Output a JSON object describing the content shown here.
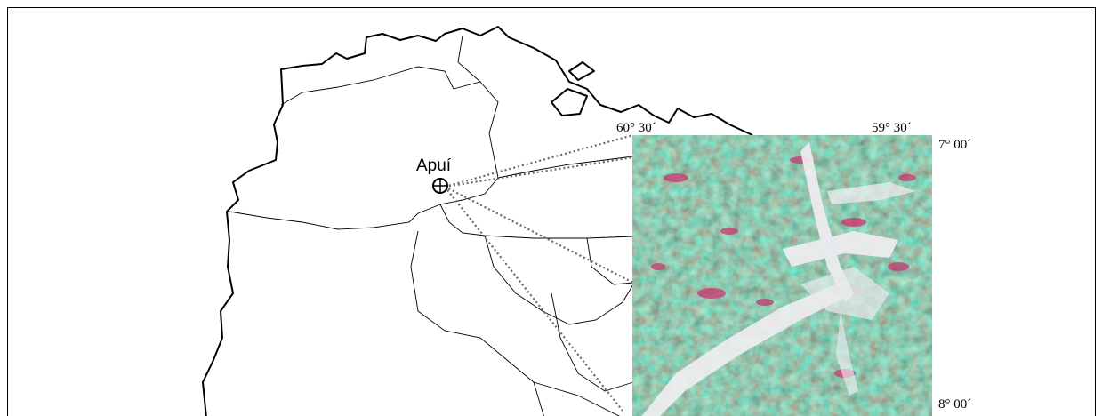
{
  "map": {
    "place_label": "Apuí",
    "image_labels": {
      "top_left": "60° 30´",
      "top_right": "59° 30´",
      "right_top": "7° 00´",
      "right_bottom": "8° 00´"
    }
  }
}
